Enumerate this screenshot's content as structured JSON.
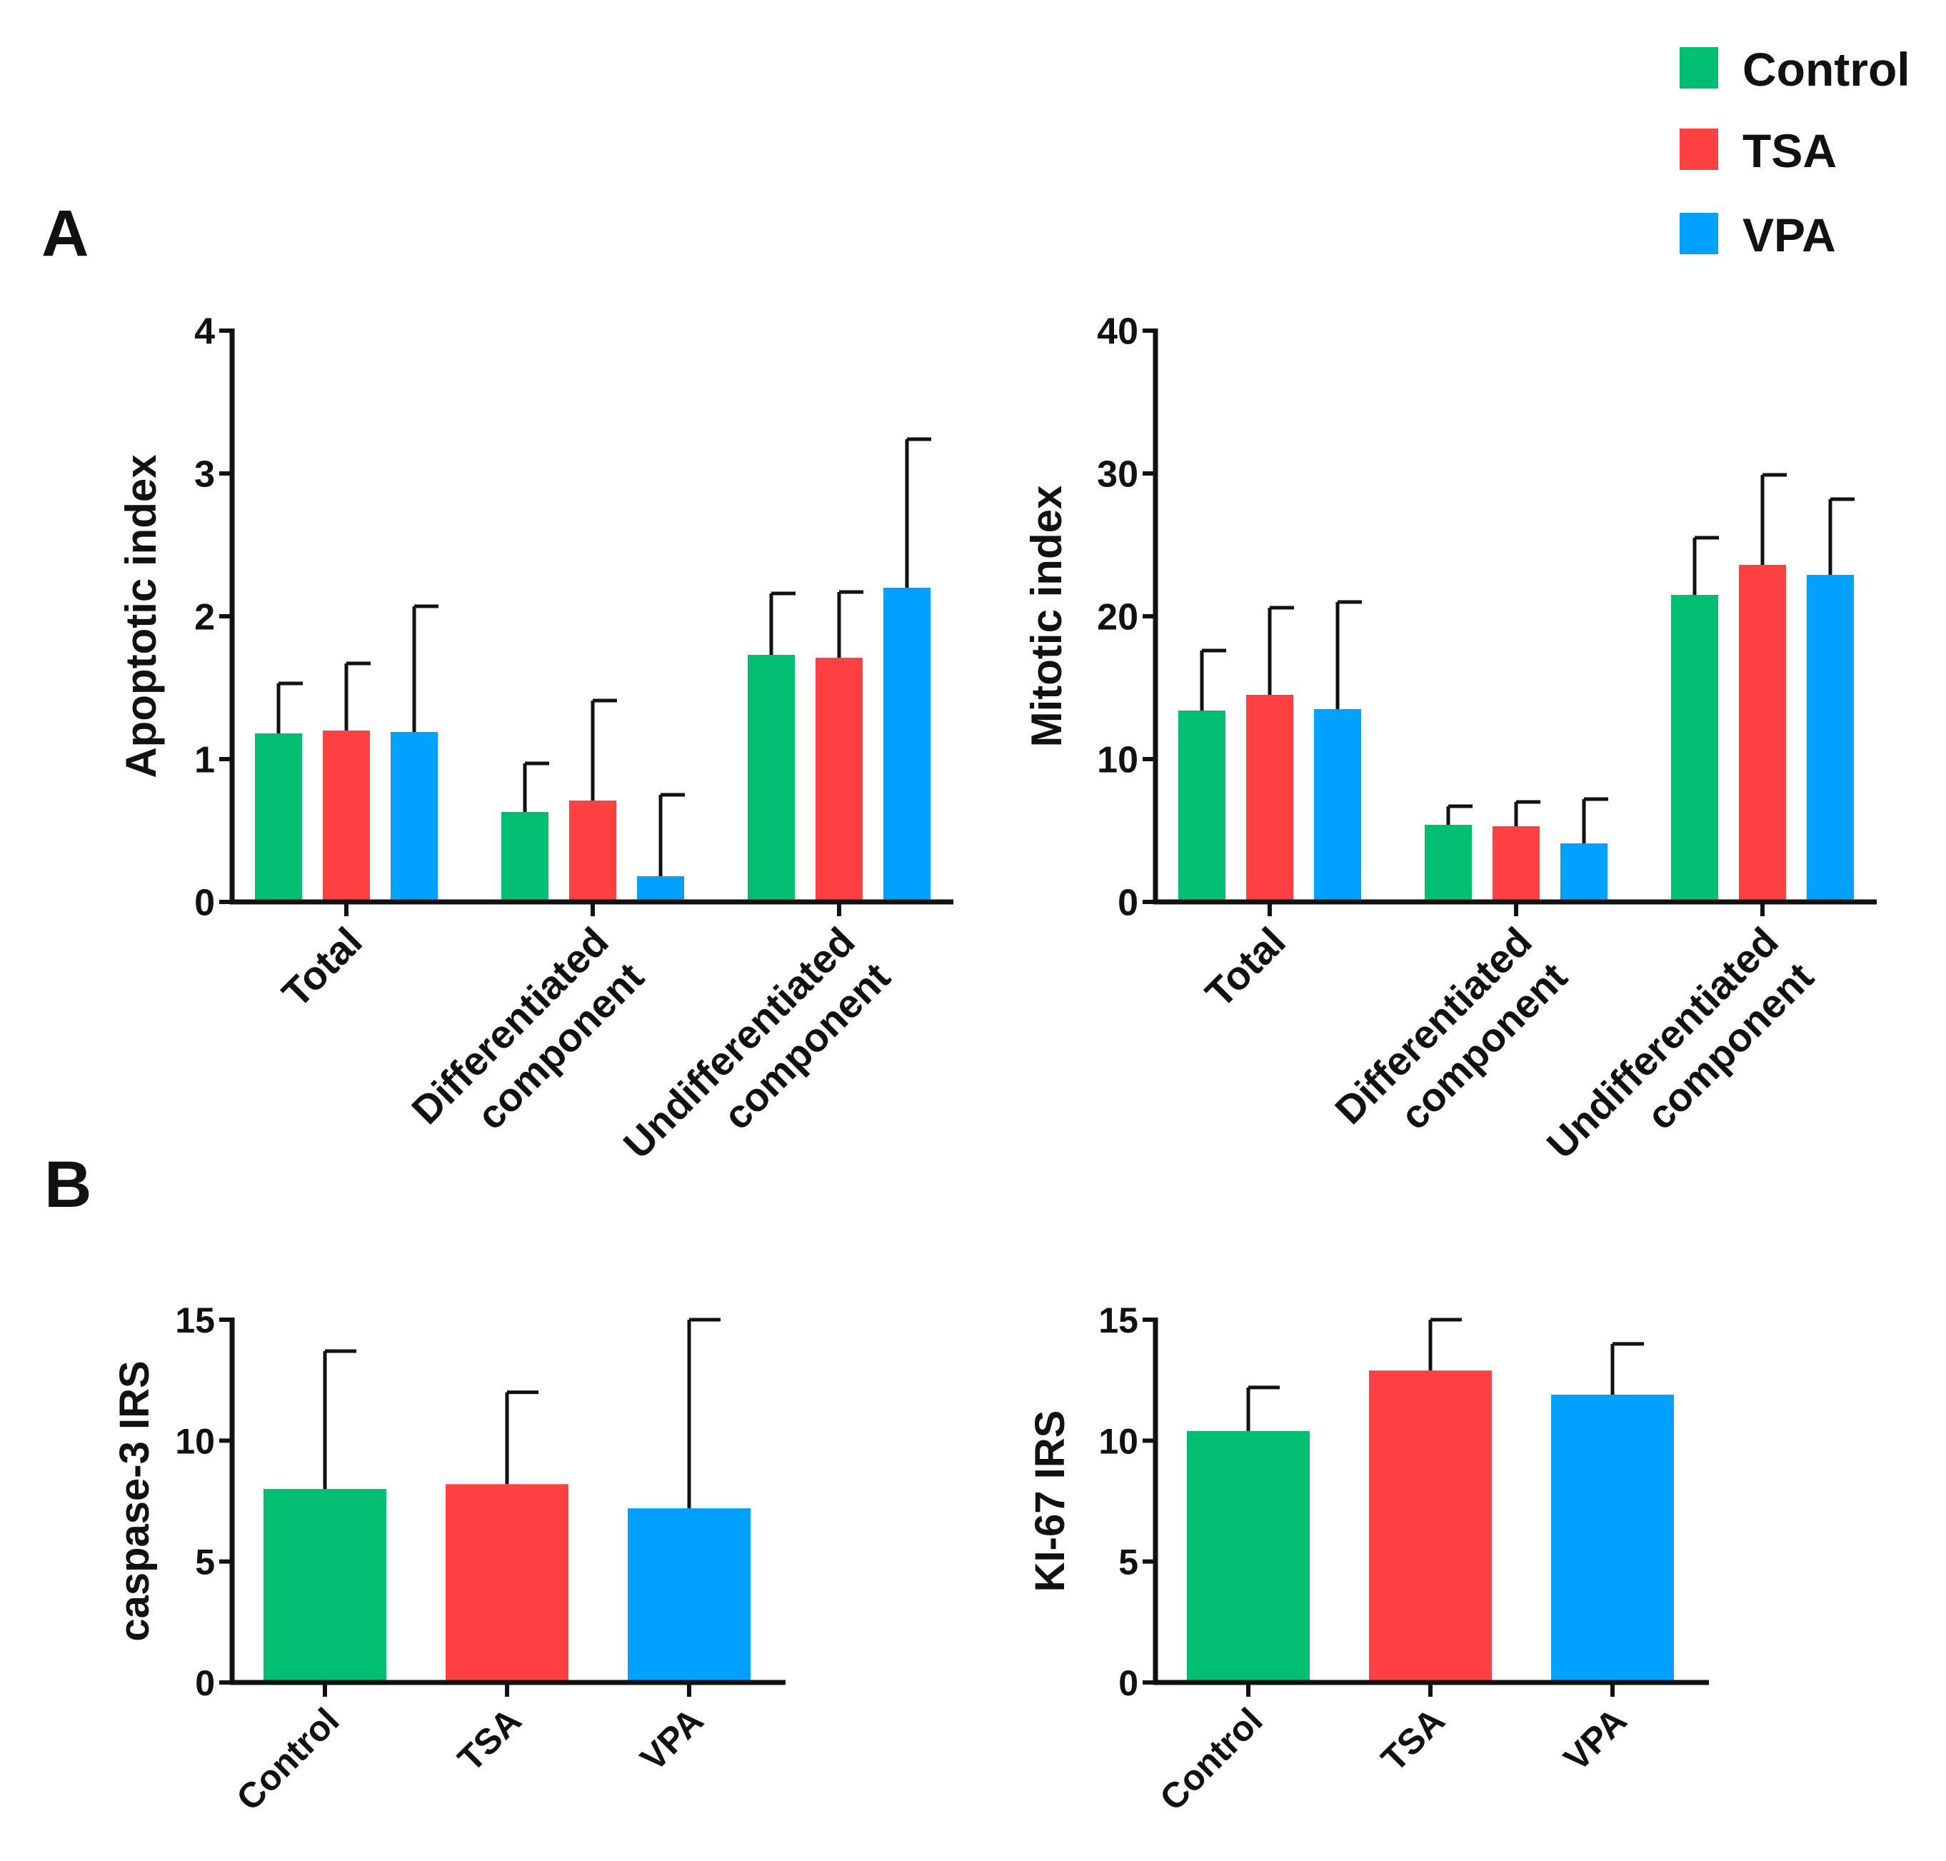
{
  "figure": {
    "panel_labels": [
      "A",
      "B"
    ]
  },
  "legend": {
    "items": [
      {
        "label": "Control",
        "color": "#00BF72"
      },
      {
        "label": "TSA",
        "color": "#FF4040"
      },
      {
        "label": "VPA",
        "color": "#00A0FF"
      }
    ]
  },
  "chart_data": [
    {
      "id": "apoptotic",
      "panel": "A",
      "type": "bar",
      "title": "",
      "ylabel": "Apoptotic index",
      "xlabel": "",
      "ylim": [
        0,
        4
      ],
      "yticks": [
        "0",
        "1",
        "2",
        "3",
        "4"
      ],
      "categories": [
        [
          "Total"
        ],
        [
          "Differentiated",
          "component"
        ],
        [
          "Undifferentiated",
          "component"
        ]
      ],
      "series": [
        {
          "name": "Control",
          "values": [
            1.18,
            0.63,
            1.73
          ],
          "errors": [
            0.35,
            0.34,
            0.43
          ]
        },
        {
          "name": "TSA",
          "values": [
            1.2,
            0.71,
            1.71
          ],
          "errors": [
            0.47,
            0.7,
            0.46
          ]
        },
        {
          "name": "VPA",
          "values": [
            1.19,
            0.18,
            2.2
          ],
          "errors": [
            0.88,
            0.57,
            1.04
          ]
        }
      ],
      "error_bars": true,
      "grid": false
    },
    {
      "id": "mitotic",
      "panel": "A",
      "type": "bar",
      "title": "",
      "ylabel": "Mitotic index",
      "xlabel": "",
      "ylim": [
        0,
        40
      ],
      "yticks": [
        "0",
        "10",
        "20",
        "30",
        "40"
      ],
      "categories": [
        [
          "Total"
        ],
        [
          "Differentiated",
          "component"
        ],
        [
          "Undifferentiated",
          "component"
        ]
      ],
      "series": [
        {
          "name": "Control",
          "values": [
            13.4,
            5.4,
            21.5
          ],
          "errors": [
            4.2,
            1.3,
            4.0
          ]
        },
        {
          "name": "TSA",
          "values": [
            14.5,
            5.3,
            23.6
          ],
          "errors": [
            6.1,
            1.7,
            6.3
          ]
        },
        {
          "name": "VPA",
          "values": [
            13.5,
            4.1,
            22.9
          ],
          "errors": [
            7.5,
            3.1,
            5.3
          ]
        }
      ],
      "error_bars": true,
      "grid": false
    },
    {
      "id": "caspase",
      "panel": "B",
      "type": "bar",
      "title": "",
      "ylabel": "caspase-3 IRS",
      "xlabel": "",
      "ylim": [
        0,
        15
      ],
      "yticks": [
        "0",
        "5",
        "10",
        "15"
      ],
      "categories": [
        [
          "Control"
        ],
        [
          "TSA"
        ],
        [
          "VPA"
        ]
      ],
      "values": [
        8.0,
        8.2,
        7.2
      ],
      "errors": [
        5.7,
        3.8,
        7.8
      ],
      "error_bars": true,
      "grid": false
    },
    {
      "id": "ki67",
      "panel": "B",
      "type": "bar",
      "title": "",
      "ylabel": "KI-67 IRS",
      "xlabel": "",
      "ylim": [
        0,
        15
      ],
      "yticks": [
        "0",
        "5",
        "10",
        "15"
      ],
      "categories": [
        [
          "Control"
        ],
        [
          "TSA"
        ],
        [
          "VPA"
        ]
      ],
      "values": [
        10.4,
        12.9,
        11.9
      ],
      "errors": [
        1.8,
        2.1,
        2.1
      ],
      "error_bars": true,
      "grid": false
    }
  ]
}
